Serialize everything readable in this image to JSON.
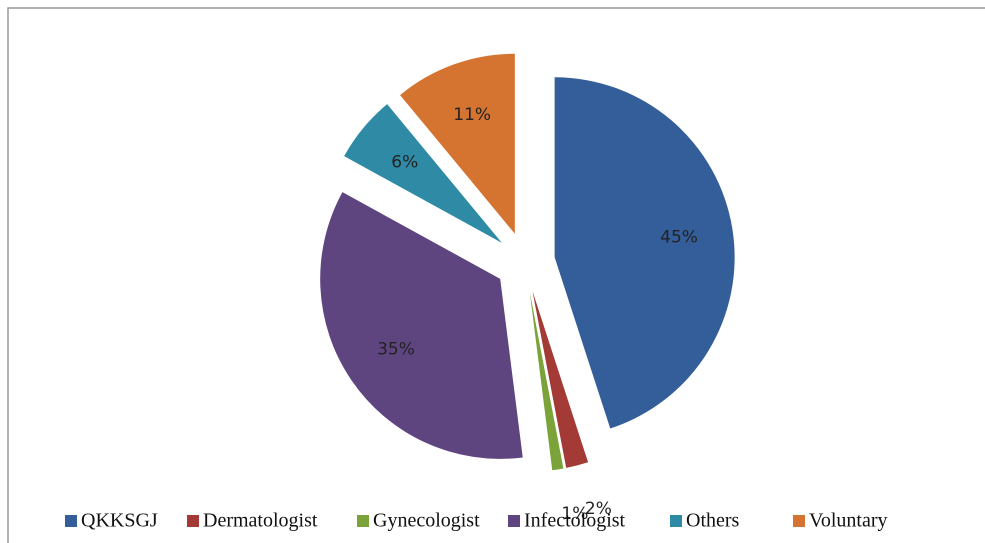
{
  "chart_data": {
    "type": "pie",
    "categories": [
      "QKKSGJ",
      "Dermatologist",
      "Gynecologist",
      "Infectologist",
      "Others",
      "Voluntary"
    ],
    "values": [
      45,
      2,
      1,
      35,
      6,
      11
    ],
    "value_labels": [
      "45%",
      "2%",
      "1%",
      "35%",
      "6%",
      "11%"
    ],
    "colors": [
      "#345e9a",
      "#a43a36",
      "#7ba33a",
      "#5e4580",
      "#2f8ba5",
      "#d57430"
    ],
    "legend": "bottom"
  }
}
